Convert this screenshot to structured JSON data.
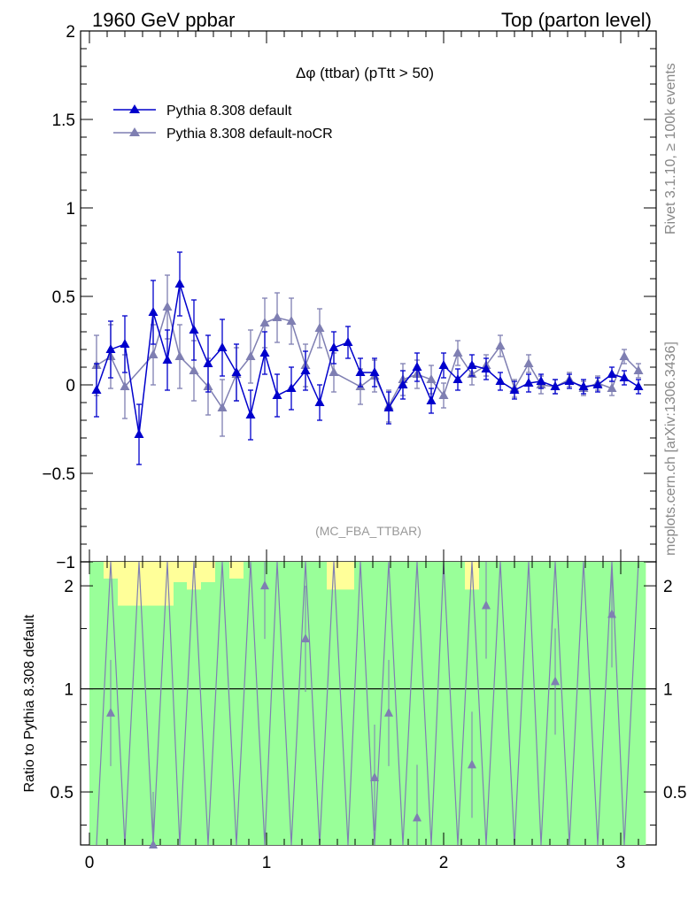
{
  "header": {
    "left": "1960 GeV ppbar",
    "right": "Top (parton level)"
  },
  "side_labels": {
    "rivet": "Rivet 3.1.10, ≥ 100k events",
    "mcplots": "mcplots.cern.ch [arXiv:1306.3436]"
  },
  "chart_data": {
    "type": "line",
    "title": "Δφ (ttbar) (pTtt > 50)",
    "watermark": "(MC_FBA_TTBAR)",
    "xlim": [
      -0.05,
      3.2
    ],
    "ylim": [
      -1.0,
      2.0
    ],
    "xticks": [
      "0",
      "1",
      "2",
      "3"
    ],
    "yticks": [
      "−1",
      "−0.5",
      "0",
      "0.5",
      "1",
      "1.5",
      "2"
    ],
    "legend_position": "top-left",
    "colors": {
      "default": "#0000cc",
      "noCR": "#7f7fb2",
      "band1": "#99ff99",
      "band2": "#ffff99"
    },
    "series": [
      {
        "name": "Pythia 8.308 default",
        "x": [
          0.04,
          0.12,
          0.2,
          0.28,
          0.36,
          0.44,
          0.51,
          0.59,
          0.67,
          0.75,
          0.83,
          0.91,
          0.99,
          1.06,
          1.14,
          1.22,
          1.3,
          1.38,
          1.46,
          1.53,
          1.61,
          1.69,
          1.77,
          1.85,
          1.93,
          2.0,
          2.08,
          2.16,
          2.24,
          2.32,
          2.4,
          2.48,
          2.55,
          2.63,
          2.71,
          2.79,
          2.87,
          2.95,
          3.02,
          3.1
        ],
        "y": [
          -0.03,
          0.2,
          0.23,
          -0.28,
          0.41,
          0.14,
          0.57,
          0.31,
          0.12,
          0.21,
          0.07,
          -0.17,
          0.18,
          -0.06,
          -0.02,
          0.08,
          -0.1,
          0.21,
          0.24,
          0.07,
          0.07,
          -0.13,
          0.0,
          0.1,
          -0.09,
          0.11,
          0.03,
          0.11,
          0.09,
          0.02,
          -0.03,
          0.01,
          0.02,
          -0.01,
          0.02,
          -0.01,
          0.0,
          0.06,
          0.04,
          -0.01
        ],
        "err": [
          0.15,
          0.16,
          0.16,
          0.17,
          0.18,
          0.17,
          0.18,
          0.17,
          0.16,
          0.16,
          0.16,
          0.14,
          0.12,
          0.12,
          0.12,
          0.11,
          0.1,
          0.09,
          0.09,
          0.08,
          0.08,
          0.09,
          0.08,
          0.08,
          0.07,
          0.07,
          0.06,
          0.06,
          0.06,
          0.05,
          0.05,
          0.05,
          0.04,
          0.04,
          0.04,
          0.04,
          0.04,
          0.04,
          0.04,
          0.04
        ]
      },
      {
        "name": "Pythia 8.308 default-noCR",
        "x": [
          0.04,
          0.12,
          0.2,
          0.28,
          0.36,
          0.44,
          0.51,
          0.59,
          0.67,
          0.75,
          0.83,
          0.91,
          0.99,
          1.06,
          1.14,
          1.22,
          1.3,
          1.38,
          1.46,
          1.53,
          1.61,
          1.69,
          1.77,
          1.85,
          1.93,
          2.0,
          2.08,
          2.16,
          2.24,
          2.32,
          2.4,
          2.48,
          2.55,
          2.63,
          2.71,
          2.79,
          2.87,
          2.95,
          3.02,
          3.1
        ],
        "y": [
          0.11,
          0.16,
          -0.01,
          null,
          0.17,
          0.44,
          0.16,
          0.08,
          -0.01,
          -0.13,
          0.06,
          0.16,
          0.35,
          0.38,
          0.36,
          0.11,
          0.32,
          0.07,
          null,
          -0.01,
          0.05,
          -0.12,
          0.03,
          0.06,
          0.03,
          -0.06,
          0.18,
          0.06,
          0.11,
          0.22,
          -0.02,
          0.12,
          0.0,
          -0.01,
          0.03,
          -0.02,
          0.01,
          -0.02,
          0.16,
          0.08
        ],
        "err": [
          0.17,
          0.18,
          0.18,
          0.0,
          0.17,
          0.18,
          0.18,
          0.17,
          0.16,
          0.16,
          0.15,
          0.15,
          0.14,
          0.14,
          0.13,
          0.12,
          0.11,
          0.11,
          0.0,
          0.1,
          0.09,
          0.09,
          0.09,
          0.08,
          0.08,
          0.07,
          0.07,
          0.06,
          0.06,
          0.06,
          0.05,
          0.05,
          0.05,
          0.04,
          0.04,
          0.04,
          0.04,
          0.04,
          0.04,
          0.04
        ]
      }
    ],
    "ratio": {
      "ylabel": "Ratio to Pythia 8.308 default",
      "ylim": [
        0.35,
        2.35
      ],
      "yticks": [
        "0.5",
        "1",
        "2"
      ],
      "ref_line": 1.0,
      "band_inner": [
        [
          0.35,
          2.35
        ],
        [
          0.35,
          2.1
        ],
        [
          0.35,
          1.75
        ],
        [
          0.35,
          1.75
        ],
        [
          0.35,
          1.75
        ],
        [
          0.35,
          1.75
        ],
        [
          0.35,
          2.05
        ],
        [
          0.35,
          1.95
        ],
        [
          0.35,
          2.05
        ],
        [
          0.35,
          2.35
        ],
        [
          0.35,
          2.1
        ],
        [
          0.35,
          2.35
        ],
        [
          0.35,
          2.35
        ],
        [
          0.35,
          2.35
        ],
        [
          0.35,
          2.35
        ],
        [
          0.35,
          2.35
        ],
        [
          0.35,
          2.35
        ],
        [
          0.35,
          1.95
        ],
        [
          0.35,
          1.95
        ],
        [
          0.35,
          2.35
        ],
        [
          0.35,
          2.35
        ],
        [
          0.35,
          2.35
        ],
        [
          0.35,
          2.35
        ],
        [
          0.35,
          2.35
        ],
        [
          0.35,
          2.35
        ],
        [
          0.35,
          2.35
        ],
        [
          0.35,
          2.35
        ],
        [
          0.35,
          1.95
        ],
        [
          0.35,
          2.35
        ],
        [
          0.35,
          2.35
        ],
        [
          0.35,
          2.35
        ],
        [
          0.35,
          2.35
        ],
        [
          0.35,
          2.35
        ],
        [
          0.35,
          2.35
        ],
        [
          0.35,
          2.35
        ],
        [
          0.35,
          2.35
        ],
        [
          0.35,
          2.35
        ],
        [
          0.35,
          2.35
        ],
        [
          0.35,
          2.35
        ],
        [
          0.35,
          2.35
        ]
      ],
      "band_outer": [
        [
          0.35,
          2.35
        ],
        [
          0.35,
          2.35
        ],
        [
          0.35,
          2.35
        ],
        [
          0.35,
          2.35
        ],
        [
          0.35,
          2.35
        ],
        [
          0.35,
          2.35
        ],
        [
          0.35,
          2.35
        ],
        [
          0.35,
          2.35
        ],
        [
          0.35,
          2.35
        ],
        [
          0.35,
          2.35
        ],
        [
          0.35,
          2.35
        ],
        [
          0.35,
          2.35
        ],
        [
          0.35,
          2.35
        ],
        [
          0.35,
          2.35
        ],
        [
          0.35,
          2.35
        ],
        [
          0.35,
          2.35
        ],
        [
          0.35,
          2.35
        ],
        [
          0.35,
          2.35
        ],
        [
          0.35,
          2.35
        ],
        [
          0.35,
          2.35
        ],
        [
          0.35,
          2.35
        ],
        [
          0.35,
          2.35
        ],
        [
          0.35,
          2.35
        ],
        [
          0.35,
          2.35
        ],
        [
          0.35,
          2.35
        ],
        [
          0.35,
          2.35
        ],
        [
          0.35,
          2.35
        ],
        [
          0.35,
          2.35
        ],
        [
          0.35,
          2.35
        ],
        [
          0.35,
          2.35
        ],
        [
          0.35,
          2.35
        ],
        [
          0.35,
          2.35
        ],
        [
          0.35,
          2.35
        ],
        [
          0.35,
          2.35
        ],
        [
          0.35,
          2.35
        ],
        [
          0.35,
          2.35
        ],
        [
          0.35,
          2.35
        ],
        [
          0.35,
          2.35
        ],
        [
          0.35,
          2.35
        ],
        [
          0.35,
          2.35
        ]
      ],
      "points": {
        "x": [
          0.12,
          0.36,
          0.99,
          1.22,
          1.61,
          1.69,
          1.85,
          2.16,
          2.24,
          2.63,
          2.95
        ],
        "y": [
          0.85,
          0.35,
          2.0,
          1.4,
          0.55,
          0.85,
          0.42,
          0.6,
          1.75,
          1.05,
          1.65
        ]
      }
    }
  }
}
